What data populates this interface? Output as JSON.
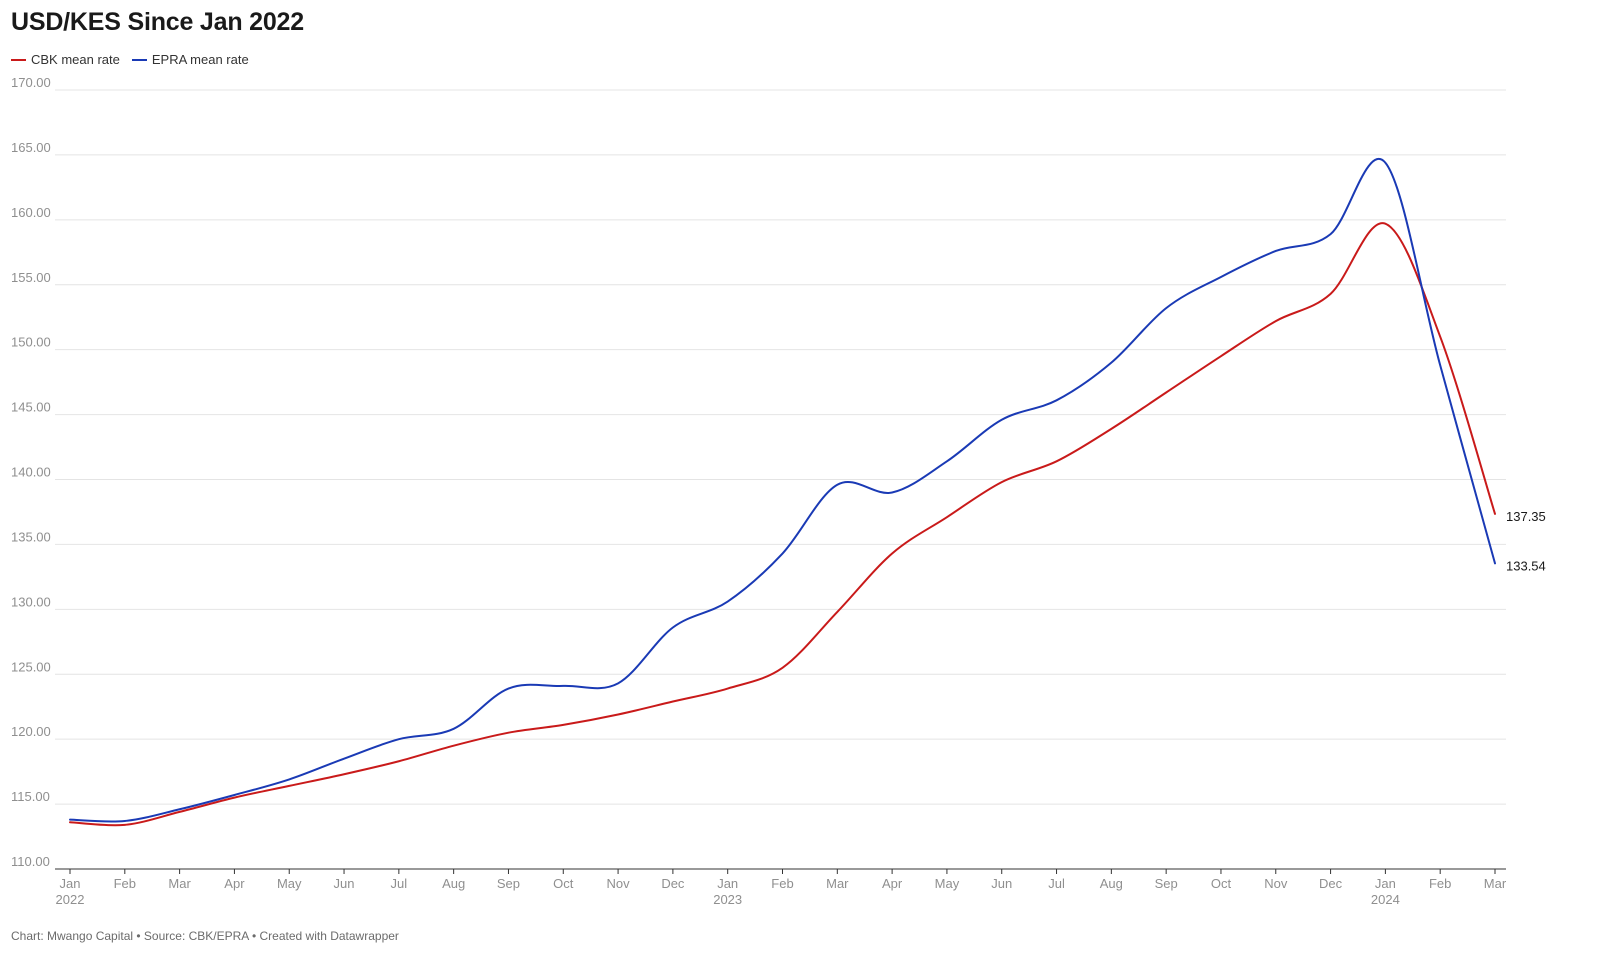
{
  "header": {
    "title": "USD/KES Since Jan 2022"
  },
  "footer": {
    "text": "Chart: Mwango Capital • Source: CBK/EPRA • Created with Datawrapper"
  },
  "chart_data": {
    "type": "line",
    "title": "USD/KES Since Jan 2022",
    "xlabel": "",
    "ylabel": "",
    "ylim": [
      110,
      170
    ],
    "y_ticks": [
      "110.00",
      "115.00",
      "120.00",
      "125.00",
      "130.00",
      "135.00",
      "140.00",
      "145.00",
      "150.00",
      "155.00",
      "160.00",
      "165.00",
      "170.00"
    ],
    "x_ticks": [
      {
        "month": "Jan",
        "year": "2022"
      },
      {
        "month": "Feb",
        "year": ""
      },
      {
        "month": "Mar",
        "year": ""
      },
      {
        "month": "Apr",
        "year": ""
      },
      {
        "month": "May",
        "year": ""
      },
      {
        "month": "Jun",
        "year": ""
      },
      {
        "month": "Jul",
        "year": ""
      },
      {
        "month": "Aug",
        "year": ""
      },
      {
        "month": "Sep",
        "year": ""
      },
      {
        "month": "Oct",
        "year": ""
      },
      {
        "month": "Nov",
        "year": ""
      },
      {
        "month": "Dec",
        "year": ""
      },
      {
        "month": "Jan",
        "year": "2023"
      },
      {
        "month": "Feb",
        "year": ""
      },
      {
        "month": "Mar",
        "year": ""
      },
      {
        "month": "Apr",
        "year": ""
      },
      {
        "month": "May",
        "year": ""
      },
      {
        "month": "Jun",
        "year": ""
      },
      {
        "month": "Jul",
        "year": ""
      },
      {
        "month": "Aug",
        "year": ""
      },
      {
        "month": "Sep",
        "year": ""
      },
      {
        "month": "Oct",
        "year": ""
      },
      {
        "month": "Nov",
        "year": ""
      },
      {
        "month": "Dec",
        "year": ""
      },
      {
        "month": "Jan",
        "year": "2024"
      },
      {
        "month": "Feb",
        "year": ""
      },
      {
        "month": "Mar",
        "year": ""
      }
    ],
    "x": [
      "2022-01",
      "2022-02",
      "2022-03",
      "2022-04",
      "2022-05",
      "2022-06",
      "2022-07",
      "2022-08",
      "2022-09",
      "2022-10",
      "2022-11",
      "2022-12",
      "2023-01",
      "2023-02",
      "2023-03",
      "2023-04",
      "2023-05",
      "2023-06",
      "2023-07",
      "2023-08",
      "2023-09",
      "2023-10",
      "2023-11",
      "2023-12",
      "2024-01",
      "2024-02",
      "2024-03"
    ],
    "grid": true,
    "legend_position": "top-left",
    "series": [
      {
        "name": "CBK mean rate",
        "color": "#c91a1a",
        "values": [
          113.6,
          113.4,
          114.4,
          115.5,
          116.4,
          117.3,
          118.3,
          119.5,
          120.5,
          121.1,
          121.9,
          122.9,
          123.9,
          125.5,
          129.8,
          134.3,
          137.1,
          139.8,
          141.4,
          143.9,
          146.7,
          149.5,
          152.2,
          154.3,
          159.7,
          151.0,
          137.35
        ],
        "end_label": "137.35"
      },
      {
        "name": "EPRA mean rate",
        "color": "#1a3ab5",
        "values": [
          113.8,
          113.7,
          114.6,
          115.7,
          116.9,
          118.5,
          120.0,
          120.8,
          123.9,
          124.1,
          124.3,
          128.6,
          130.6,
          134.3,
          139.6,
          139.0,
          141.4,
          144.6,
          146.1,
          149.0,
          153.2,
          155.6,
          157.6,
          158.9,
          164.4,
          148.8,
          133.54
        ],
        "end_label": "133.54"
      }
    ]
  }
}
